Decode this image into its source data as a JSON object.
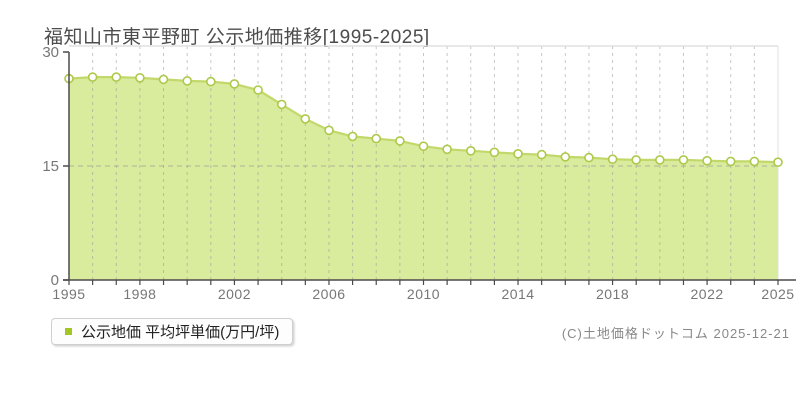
{
  "chart_data": {
    "type": "area",
    "title": "福知山市東平野町 公示地価推移[1995-2025]",
    "series_name": "公示地価 平均坪単価(万円/坪)",
    "x": [
      1995,
      1996,
      1997,
      1998,
      1999,
      2000,
      2001,
      2002,
      2003,
      2004,
      2005,
      2006,
      2007,
      2008,
      2009,
      2010,
      2011,
      2012,
      2013,
      2014,
      2015,
      2016,
      2017,
      2018,
      2019,
      2020,
      2021,
      2022,
      2023,
      2024,
      2025
    ],
    "values": [
      26.5,
      26.7,
      26.7,
      26.6,
      26.4,
      26.2,
      26.1,
      25.8,
      25.0,
      23.1,
      21.2,
      19.7,
      18.9,
      18.6,
      18.3,
      17.6,
      17.2,
      17.0,
      16.8,
      16.6,
      16.5,
      16.2,
      16.1,
      15.9,
      15.8,
      15.8,
      15.8,
      15.7,
      15.6,
      15.6,
      15.5
    ],
    "ylabel": "",
    "xlabel": "",
    "ylim": [
      0,
      30
    ],
    "y_ticks": [
      0,
      15,
      30
    ],
    "x_tick_years": [
      1995,
      1998,
      2002,
      2006,
      2010,
      2014,
      2018,
      2022,
      2025
    ],
    "grid": "dashed vertical line per year; dashed horizontal line at 15; solid light top/right frame",
    "legend_position": "bottom-left outside plot",
    "colors": {
      "area_fill": "#d9eb9d",
      "line": "#c2d86a",
      "marker_fill": "#ffffff",
      "marker_stroke": "#adc94a",
      "legend_swatch": "#a3c622",
      "axis": "#4a4a4a",
      "grid": "#999999",
      "frame": "#e0e0e0",
      "tick_label": "#777777"
    }
  },
  "legend": {
    "label": "公示地価 平均坪単価(万円/坪)"
  },
  "footer": {
    "copyright": "(C)土地価格ドットコム 2025-12-21"
  }
}
